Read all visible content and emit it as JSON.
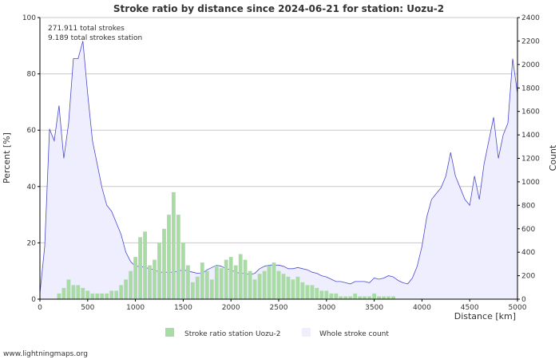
{
  "chart_data": {
    "type": "bar",
    "title": "Stroke ratio by distance since 2024-06-21 for station: Uozu-2",
    "annotations": [
      "271.911 total strokes",
      "9.189 total strokes station"
    ],
    "xlabel": "Distance   [km]",
    "ylabel_left": "Percent   [%]",
    "ylabel_right": "Count",
    "xlim": [
      0,
      5000
    ],
    "ylim_left": [
      0,
      100
    ],
    "ylim_right": [
      0,
      2400
    ],
    "x_ticks": [
      0,
      500,
      1000,
      1500,
      2000,
      2500,
      3000,
      3500,
      4000,
      4500,
      5000
    ],
    "y_left_ticks": [
      0,
      20,
      40,
      60,
      80,
      100
    ],
    "y_right_ticks": [
      0,
      200,
      400,
      600,
      800,
      1000,
      1200,
      1400,
      1600,
      1800,
      2000,
      2200,
      2400
    ],
    "grid": true,
    "legend_position": "bottom",
    "colors": {
      "ratio_fill": "#a8dca4",
      "count_fill": "#eeeeff",
      "count_line": "#4a4ad0",
      "grid": "#c8c8c8",
      "axis": "#000000"
    },
    "series": [
      {
        "name": "Stroke ratio station Uozu-2",
        "axis": "left",
        "kind": "bars",
        "x_km": [
          200,
          250,
          300,
          350,
          400,
          450,
          500,
          550,
          600,
          650,
          700,
          750,
          800,
          850,
          900,
          950,
          1000,
          1050,
          1100,
          1150,
          1200,
          1250,
          1300,
          1350,
          1400,
          1450,
          1500,
          1550,
          1600,
          1650,
          1700,
          1750,
          1800,
          1850,
          1900,
          1950,
          2000,
          2050,
          2100,
          2150,
          2200,
          2250,
          2300,
          2350,
          2400,
          2450,
          2500,
          2550,
          2600,
          2650,
          2700,
          2750,
          2800,
          2850,
          2900,
          2950,
          3000,
          3050,
          3100,
          3150,
          3200,
          3250,
          3300,
          3350,
          3400,
          3450,
          3500,
          3550,
          3600,
          3650,
          3700
        ],
        "values": [
          2,
          4,
          7,
          5,
          5,
          4,
          3,
          2,
          2,
          2,
          2,
          3,
          3,
          5,
          7,
          10,
          15,
          22,
          24,
          12,
          14,
          20,
          25,
          30,
          38,
          30,
          20,
          12,
          6,
          8,
          13,
          10,
          7,
          12,
          11,
          14,
          15,
          12,
          16,
          14,
          10,
          7,
          9,
          10,
          12,
          13,
          10,
          9,
          8,
          7,
          8,
          6,
          5,
          5,
          4,
          3,
          3,
          2,
          2,
          1,
          1,
          1,
          2,
          1,
          1,
          1,
          2,
          1,
          1,
          1,
          1
        ]
      },
      {
        "name": "Whole stroke count",
        "axis": "right",
        "kind": "area",
        "x_km": [
          0,
          50,
          100,
          150,
          200,
          250,
          300,
          350,
          400,
          450,
          500,
          550,
          600,
          650,
          700,
          750,
          800,
          850,
          900,
          950,
          1000,
          1050,
          1100,
          1150,
          1200,
          1250,
          1300,
          1350,
          1400,
          1450,
          1500,
          1550,
          1600,
          1650,
          1700,
          1750,
          1800,
          1850,
          1900,
          1950,
          2000,
          2050,
          2100,
          2150,
          2200,
          2250,
          2300,
          2350,
          2400,
          2450,
          2500,
          2550,
          2600,
          2650,
          2700,
          2750,
          2800,
          2850,
          2900,
          2950,
          3000,
          3050,
          3100,
          3150,
          3200,
          3250,
          3300,
          3350,
          3400,
          3450,
          3500,
          3550,
          3600,
          3650,
          3700,
          3750,
          3800,
          3850,
          3900,
          3950,
          4000,
          4050,
          4100,
          4150,
          4200,
          4250,
          4300,
          4350,
          4400,
          4450,
          4500,
          4550,
          4600,
          4650,
          4700,
          4750,
          4800,
          4850,
          4900,
          4950,
          5000
        ],
        "values": [
          50,
          450,
          1450,
          1350,
          1650,
          1200,
          1500,
          2050,
          2050,
          2200,
          1750,
          1350,
          1150,
          950,
          800,
          750,
          650,
          550,
          400,
          320,
          280,
          280,
          270,
          260,
          250,
          230,
          230,
          230,
          230,
          240,
          250,
          240,
          230,
          220,
          220,
          250,
          270,
          290,
          280,
          260,
          250,
          230,
          220,
          220,
          210,
          220,
          260,
          280,
          290,
          290,
          290,
          280,
          260,
          260,
          270,
          260,
          250,
          230,
          220,
          200,
          190,
          170,
          150,
          150,
          140,
          130,
          150,
          150,
          150,
          140,
          180,
          170,
          180,
          200,
          190,
          160,
          140,
          130,
          180,
          280,
          450,
          700,
          850,
          900,
          950,
          1050,
          1250,
          1050,
          950,
          850,
          800,
          1050,
          850,
          1150,
          1350,
          1550,
          1200,
          1400,
          1500,
          2050,
          1750
        ]
      }
    ],
    "legend": [
      {
        "label": "Stroke ratio station Uozu-2",
        "color": "#a8dca4"
      },
      {
        "label": "Whole stroke count",
        "color": "#eeeeff"
      }
    ],
    "footer": "www.lightningmaps.org"
  }
}
